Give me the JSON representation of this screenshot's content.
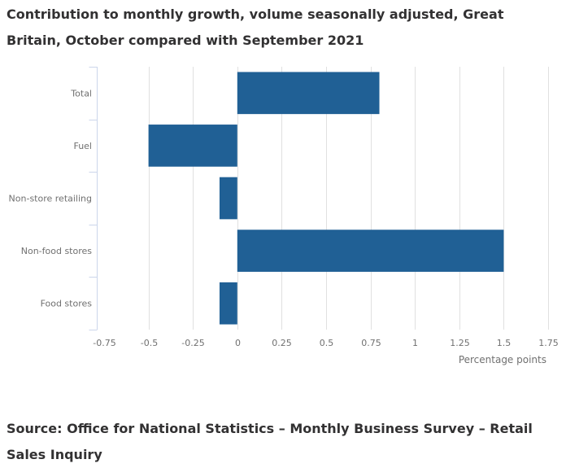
{
  "title": "Contribution to monthly growth, volume seasonally adjusted, Great Britain, October compared with September 2021",
  "source": "Source: Office for National Statistics – Monthly Business Survey – Retail Sales Inquiry",
  "colors": {
    "bar": "#206095",
    "grid": "#e0e0e0",
    "category_axis": "#ccd6eb",
    "text": "#323132",
    "label": "#707070"
  },
  "chart_data": {
    "type": "bar",
    "orientation": "horizontal",
    "title": "Contribution to monthly growth, volume seasonally adjusted, Great Britain, October compared with September 2021",
    "categories": [
      "Total",
      "Fuel",
      "Non-store retailing",
      "Non-food stores",
      "Food stores"
    ],
    "values": [
      0.8,
      -0.5,
      -0.1,
      1.5,
      -0.1
    ],
    "xlabel": "Percentage points",
    "ylabel": "",
    "xlim": [
      -0.75,
      1.75
    ],
    "xticks": [
      -0.75,
      -0.5,
      -0.25,
      0,
      0.25,
      0.5,
      0.75,
      1,
      1.25,
      1.5,
      1.75
    ],
    "xtick_labels": [
      "-0.75",
      "-0.5",
      "-0.25",
      "0",
      "0.25",
      "0.5",
      "0.75",
      "1",
      "1.25",
      "1.5",
      "1.75"
    ],
    "grid": true,
    "legend": "none"
  }
}
